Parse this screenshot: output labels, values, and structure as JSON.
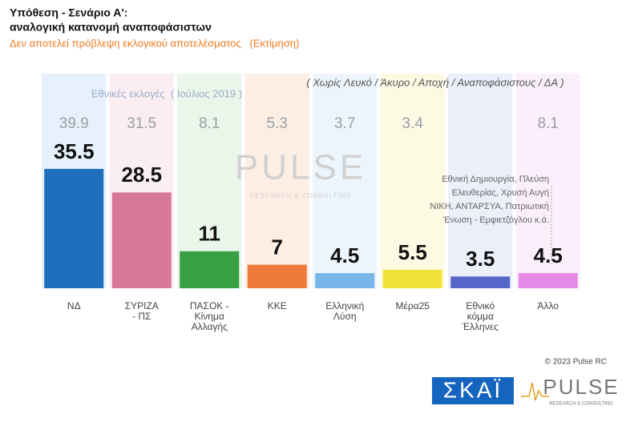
{
  "chart_data": {
    "type": "bar",
    "title": [
      "Υπόθεση - Σενάριο Α':",
      "αναλογική κατανομή αναποφάσιστων"
    ],
    "subtitle": "Δεν αποτελεί πρόβλεψη εκλογικού αποτελέσματος   (Εκτίμηση)",
    "note": "( Χωρίς Λευκό / Άκυρο / Αποχή / Αναποφάσιστους / ΔΑ )",
    "categories": [
      [
        "ΝΔ"
      ],
      [
        "ΣΥΡΙΖΑ",
        "- ΠΣ"
      ],
      [
        "ΠΑΣΟΚ -",
        "Κίνημα",
        "Αλλαγής"
      ],
      [
        "ΚΚΕ"
      ],
      [
        "Ελληνική",
        "Λύση"
      ],
      [
        "Μέρα25"
      ],
      [
        "Εθνικό",
        "κόμμα",
        "Έλληνες"
      ],
      [
        "Άλλο"
      ]
    ],
    "values": [
      35.5,
      28.5,
      11,
      7,
      4.5,
      5.5,
      3.5,
      4.5
    ],
    "colors": [
      "#1f6fbd",
      "#d7779a",
      "#3aa046",
      "#f07a3a",
      "#78b6ea",
      "#f4e23c",
      "#5566c8",
      "#e48ae6"
    ],
    "background_colors": [
      "#e6f1fb",
      "#fbeef3",
      "#eaf6ea",
      "#fdeee4",
      "#edf5fc",
      "#fcfae3",
      "#eceefa",
      "#faeffb"
    ],
    "previous": {
      "label": "Εθνικές εκλογές  ( Ιούλιος 2019 )",
      "values": [
        39.9,
        31.5,
        8.1,
        5.3,
        3.7,
        3.4,
        null,
        8.1
      ]
    },
    "other_note": [
      "Εθνική Δημιουργία, Πλεύση",
      "Ελευθερίας, Χρυσή Αυγή",
      "ΝΙΚΗ, ΑΝΤΑΡΣΥΑ, Πατριωτική",
      "Ένωση - Εμφιετζόγλου   κ.ά."
    ],
    "watermark": [
      "PULSE",
      "RESEARCH & CONSULTING"
    ],
    "copyright": "© 2023 Pulse RC",
    "logos": [
      "ΣΚΑΪ",
      "PULSE",
      "RESEARCH & CONSULTING"
    ]
  }
}
